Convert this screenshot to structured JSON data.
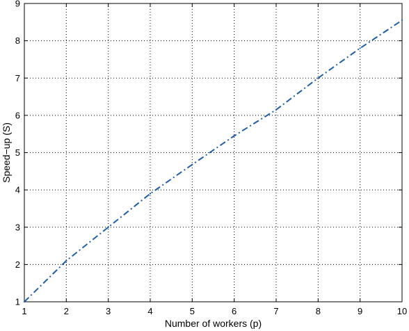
{
  "chart_data": {
    "type": "line",
    "xlabel": "Number of workers (p)",
    "ylabel": "Speed−up (S)",
    "xlim": [
      1,
      10
    ],
    "ylim": [
      1,
      9
    ],
    "xticks": [
      "1",
      "2",
      "3",
      "4",
      "5",
      "6",
      "7",
      "8",
      "9",
      "10"
    ],
    "yticks": [
      "1",
      "2",
      "3",
      "4",
      "5",
      "6",
      "7",
      "8",
      "9"
    ],
    "grid": true,
    "series": [
      {
        "line_style": "dash-dot",
        "color": "#1f5fa8",
        "x": [
          1,
          2,
          3,
          4,
          5,
          6,
          7,
          8,
          9,
          10
        ],
        "y": [
          1.0,
          2.1,
          3.0,
          3.9,
          4.68,
          5.45,
          6.15,
          7.0,
          7.8,
          8.55
        ]
      }
    ]
  }
}
